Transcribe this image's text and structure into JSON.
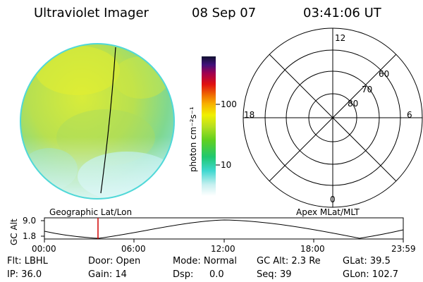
{
  "header": {
    "instrument": "Ultraviolet Imager",
    "date": "08 Sep 07",
    "time": "03:41:06 UT"
  },
  "colorbar": {
    "unit_label": "photon cm⁻²s⁻¹",
    "ticks": [
      "100",
      "10"
    ]
  },
  "polar_plot": {
    "mlt_labels": {
      "top": "12",
      "left": "18",
      "right": "6",
      "bottom": "0"
    },
    "lat_labels": [
      "60",
      "70",
      "80"
    ]
  },
  "timeline": {
    "left_label": "Geographic Lat/Lon",
    "right_label": "Apex MLat/MLT",
    "y_axis_label": "GC Alt",
    "y_ticks": [
      "9.0",
      "1.8"
    ],
    "x_ticks": [
      "00:00",
      "06:00",
      "12:00",
      "18:00",
      "23:59"
    ],
    "current_marker_time": "03:41"
  },
  "info": {
    "row1": [
      "Flt: LBHL",
      "Door: Open",
      "Mode: Normal",
      "GC Alt: 2.3 Re",
      "GLat: 39.5"
    ],
    "row2": [
      "IP: 36.0",
      "Gain: 14",
      "Dsp:",
      "0.0",
      "Seq: 39",
      "GLon: 102.7"
    ]
  }
}
